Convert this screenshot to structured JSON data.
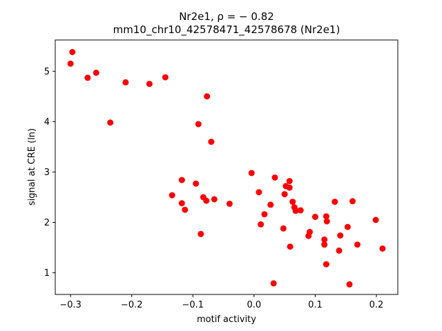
{
  "chart_data": {
    "type": "scatter",
    "title": "Nr2e1, ρ = − 0.82",
    "subtitle": "mm10_chr10_42578471_42578678 (Nr2e1)",
    "xlabel": "motif activity",
    "ylabel": "signal at CRE (ln)",
    "xlim": [
      -0.325,
      0.235
    ],
    "ylim": [
      0.57,
      5.62
    ],
    "xticks": [
      -0.3,
      -0.2,
      -0.1,
      0.0,
      0.1,
      0.2
    ],
    "xtick_labels": [
      "−0.3",
      "−0.2",
      "−0.1",
      "0.0",
      "0.1",
      "0.2"
    ],
    "yticks": [
      1,
      2,
      3,
      4,
      5
    ],
    "ytick_labels": [
      "1",
      "2",
      "3",
      "4",
      "5"
    ],
    "grid": false,
    "marker_color": "#ff0000",
    "points": [
      {
        "x": -0.3,
        "y": 5.15
      },
      {
        "x": -0.297,
        "y": 5.38
      },
      {
        "x": -0.272,
        "y": 4.87
      },
      {
        "x": -0.258,
        "y": 4.97
      },
      {
        "x": -0.235,
        "y": 3.98
      },
      {
        "x": -0.21,
        "y": 4.78
      },
      {
        "x": -0.171,
        "y": 4.75
      },
      {
        "x": -0.145,
        "y": 4.88
      },
      {
        "x": -0.077,
        "y": 4.5
      },
      {
        "x": -0.091,
        "y": 3.95
      },
      {
        "x": -0.07,
        "y": 3.6
      },
      {
        "x": -0.118,
        "y": 2.84
      },
      {
        "x": -0.095,
        "y": 2.77
      },
      {
        "x": -0.134,
        "y": 2.54
      },
      {
        "x": -0.083,
        "y": 2.5
      },
      {
        "x": -0.078,
        "y": 2.43
      },
      {
        "x": -0.065,
        "y": 2.46
      },
      {
        "x": -0.04,
        "y": 2.37
      },
      {
        "x": -0.118,
        "y": 2.38
      },
      {
        "x": -0.113,
        "y": 2.25
      },
      {
        "x": -0.087,
        "y": 1.77
      },
      {
        "x": -0.004,
        "y": 2.98
      },
      {
        "x": 0.034,
        "y": 2.89
      },
      {
        "x": 0.058,
        "y": 2.82
      },
      {
        "x": 0.052,
        "y": 2.72
      },
      {
        "x": 0.058,
        "y": 2.69
      },
      {
        "x": 0.008,
        "y": 2.6
      },
      {
        "x": 0.05,
        "y": 2.56
      },
      {
        "x": 0.063,
        "y": 2.41
      },
      {
        "x": 0.027,
        "y": 2.35
      },
      {
        "x": 0.066,
        "y": 2.3
      },
      {
        "x": 0.068,
        "y": 2.23
      },
      {
        "x": 0.076,
        "y": 2.24
      },
      {
        "x": 0.017,
        "y": 2.16
      },
      {
        "x": 0.1,
        "y": 2.11
      },
      {
        "x": 0.118,
        "y": 2.12
      },
      {
        "x": 0.119,
        "y": 2.02
      },
      {
        "x": 0.132,
        "y": 2.41
      },
      {
        "x": 0.161,
        "y": 2.42
      },
      {
        "x": 0.199,
        "y": 2.05
      },
      {
        "x": 0.011,
        "y": 1.96
      },
      {
        "x": 0.048,
        "y": 1.88
      },
      {
        "x": 0.153,
        "y": 1.91
      },
      {
        "x": 0.091,
        "y": 1.81
      },
      {
        "x": 0.089,
        "y": 1.73
      },
      {
        "x": 0.141,
        "y": 1.74
      },
      {
        "x": 0.115,
        "y": 1.66
      },
      {
        "x": 0.115,
        "y": 1.56
      },
      {
        "x": 0.169,
        "y": 1.56
      },
      {
        "x": 0.059,
        "y": 1.52
      },
      {
        "x": 0.139,
        "y": 1.44
      },
      {
        "x": 0.21,
        "y": 1.48
      },
      {
        "x": 0.118,
        "y": 1.17
      },
      {
        "x": 0.032,
        "y": 0.79
      },
      {
        "x": 0.156,
        "y": 0.77
      }
    ]
  }
}
